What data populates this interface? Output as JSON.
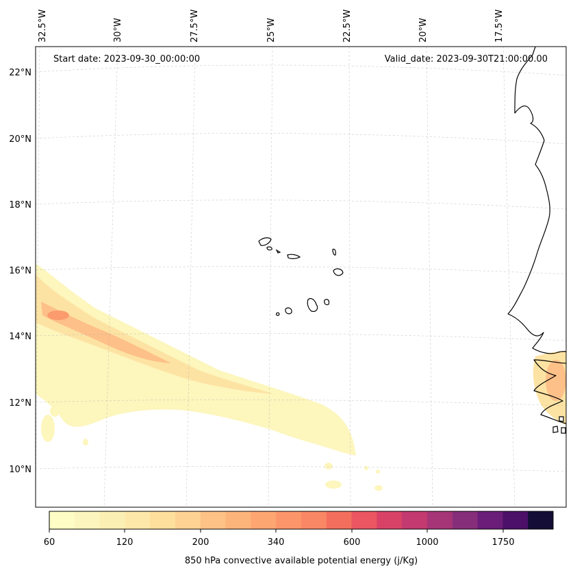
{
  "header": {
    "start_date": "Start date: 2023-09-30_00:00:00",
    "valid_date": "Valid_date: 2023-09-30T21:00:00.00"
  },
  "axes": {
    "lon_labels": [
      "32.5°W",
      "30°W",
      "27.5°W",
      "25°W",
      "22.5°W",
      "20°W",
      "17.5°W"
    ],
    "lat_labels": [
      "22°N",
      "20°N",
      "18°N",
      "16°N",
      "14°N",
      "12°N",
      "10°N"
    ]
  },
  "colorbar": {
    "title": "850 hPa convective available potential energy (j/Kg)",
    "tick_labels": [
      "60",
      "120",
      "200",
      "340",
      "600",
      "1000",
      "1750"
    ],
    "colors": [
      "#fdfdc5",
      "#fcf5bd",
      "#fcefb4",
      "#fde8a9",
      "#fedf9c",
      "#fed292",
      "#fdc285",
      "#fdb47a",
      "#fda672",
      "#fc966a",
      "#f98766",
      "#f46e5e",
      "#ea5661",
      "#d94267",
      "#c23a70",
      "#a53577",
      "#872e7a",
      "#6a1d79",
      "#4c1068",
      "#140e36"
    ]
  },
  "map": {
    "colors": {
      "cape_low": "#fdf6bd",
      "cape_mid": "#fde3a3",
      "cape_high": "#fdc088",
      "cape_peak": "#fb9b6e",
      "coastline": "#000000"
    }
  }
}
